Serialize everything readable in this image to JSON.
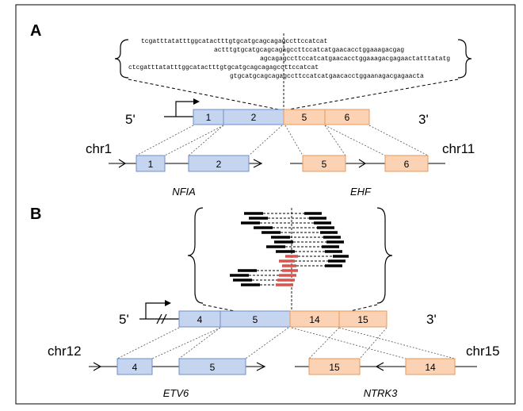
{
  "panel_a": {
    "label": "A",
    "sequences": [
      "tcgatttatatttggcatactttgtgcatgcagcagagccttccatcat",
      "actttgtgcatgcagcagagccttccatcatgaacacctggaaagacgag",
      "agcagagccttccatcatgaacacctggaaagacgagaactatttatatg",
      "ctcgatttatatttggcatactttgtgcatgcagcagagccttccatcat",
      "gtgcatgcagcagagccttccatcatgaacacctggaanagacgagaacta"
    ],
    "five_prime": "5'",
    "three_prime": "3'",
    "fusion_exons_left": [
      "1",
      "2"
    ],
    "fusion_exons_right": [
      "5",
      "6"
    ],
    "chr_left": "chr1",
    "chr_right": "chr11",
    "gene_left_exons": [
      "1",
      "2"
    ],
    "gene_right_exons": [
      "5",
      "6"
    ],
    "gene_left": "NFIA",
    "gene_right": "EHF"
  },
  "panel_b": {
    "label": "B",
    "five_prime": "5'",
    "three_prime": "3'",
    "fusion_exons_left": [
      "4",
      "5"
    ],
    "fusion_exons_right": [
      "14",
      "15"
    ],
    "chr_left": "chr12",
    "chr_right": "chr15",
    "gene_left_exons": [
      "4",
      "5"
    ],
    "gene_right_exons": [
      "15",
      "14"
    ],
    "gene_left": "ETV6",
    "gene_right": "NTRK3"
  },
  "colors": {
    "blue_fill": "#c6d5ef",
    "blue_stroke": "#6f8fc7",
    "orange_fill": "#fbd3b4",
    "orange_stroke": "#e59a5c",
    "read_black": "#000000",
    "read_red": "#d9534f"
  }
}
